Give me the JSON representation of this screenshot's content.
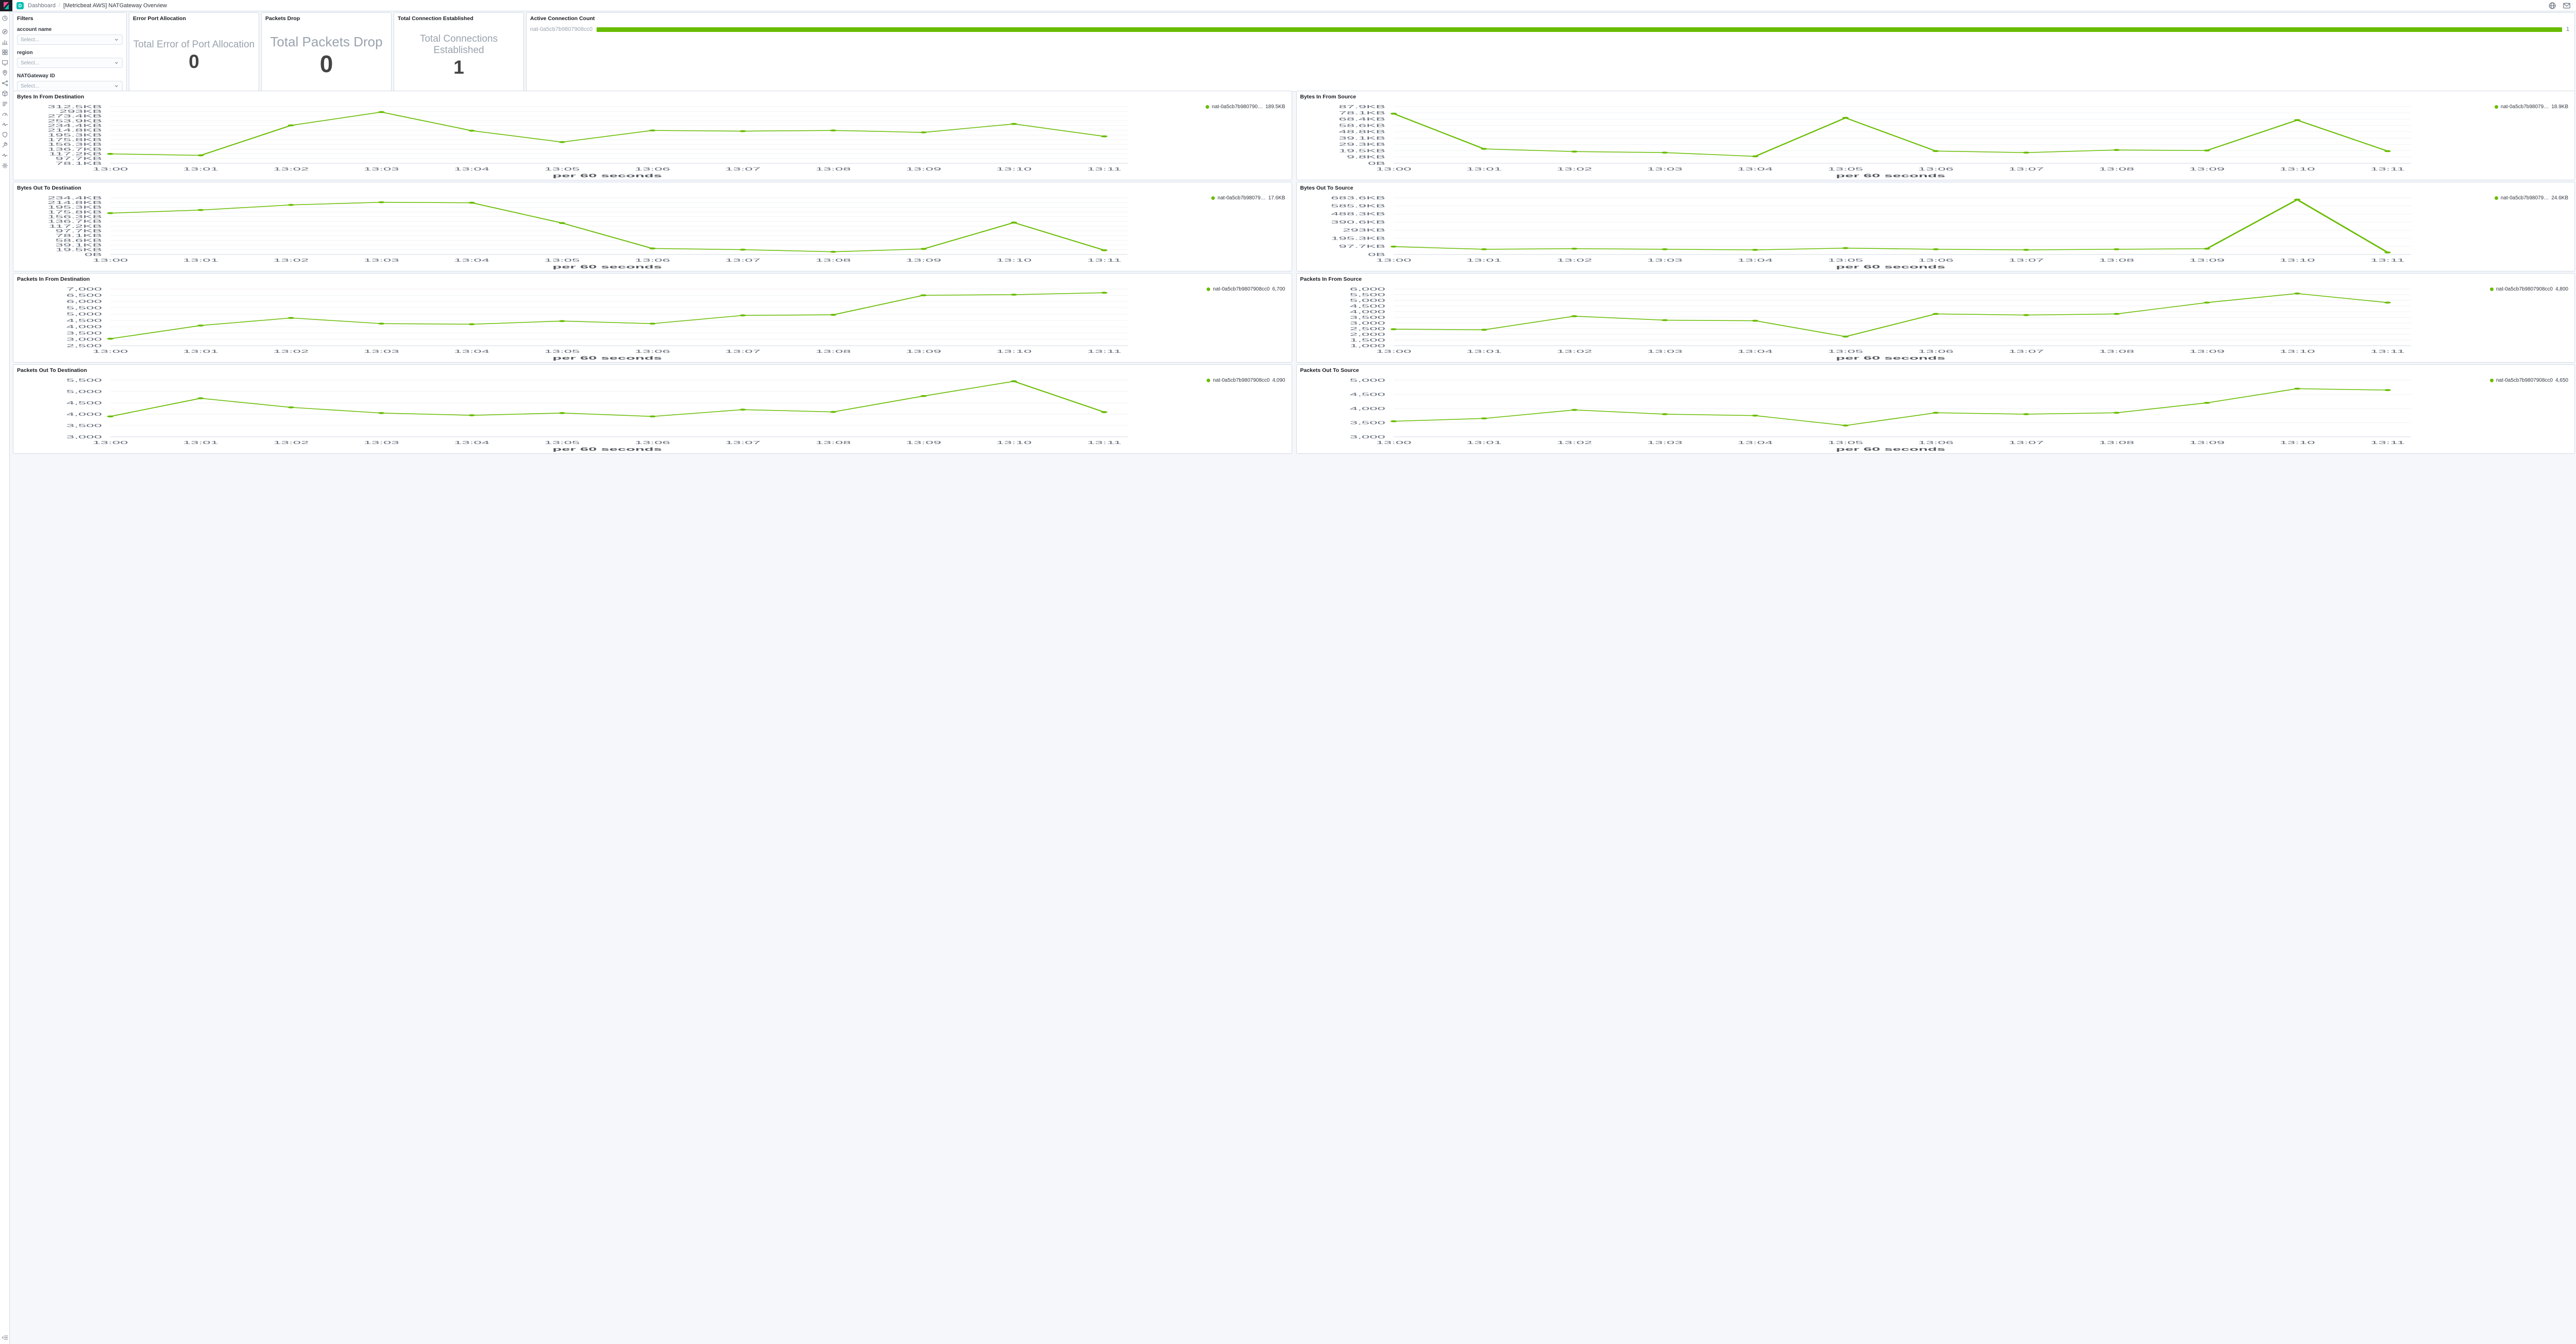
{
  "topbar": {
    "badge": "D",
    "breadcrumb_root": "Dashboard",
    "breadcrumb_separator": "/",
    "title": "[Metricbeat AWS] NATGateway Overview"
  },
  "sidebar": {
    "items": [
      {
        "name": "recently-viewed",
        "icon": "clock"
      },
      {
        "name": "discover",
        "icon": "compass"
      },
      {
        "name": "visualize",
        "icon": "bars"
      },
      {
        "name": "dashboard",
        "icon": "grid"
      },
      {
        "name": "canvas",
        "icon": "canvas"
      },
      {
        "name": "maps",
        "icon": "pin"
      },
      {
        "name": "machine-learning",
        "icon": "ml"
      },
      {
        "name": "infrastructure",
        "icon": "cube"
      },
      {
        "name": "logs",
        "icon": "logs"
      },
      {
        "name": "apm",
        "icon": "gauge"
      },
      {
        "name": "uptime",
        "icon": "heartbeat"
      },
      {
        "name": "siem",
        "icon": "shield"
      },
      {
        "name": "dev-tools",
        "icon": "wrench"
      },
      {
        "name": "stack-monitoring",
        "icon": "pulse"
      },
      {
        "name": "management",
        "icon": "gear"
      }
    ]
  },
  "filters": {
    "title": "Filters",
    "fields": [
      {
        "label": "account name",
        "placeholder": "Select..."
      },
      {
        "label": "region",
        "placeholder": "Select..."
      },
      {
        "label": "NATGateway ID",
        "placeholder": "Select..."
      }
    ]
  },
  "metric_panels": [
    {
      "panel_title": "Error Port Allocation",
      "label": "Total Error of Port Allocation",
      "value": "0"
    },
    {
      "panel_title": "Packets Drop",
      "label": "Total Packets Drop",
      "value": "0"
    },
    {
      "panel_title": "Total Connection Established",
      "label": "Total Connections Established",
      "value": "1"
    }
  ],
  "active_connection": {
    "panel_title": "Active Connection Count",
    "label": "nat-0a5cb7b9807908cc0",
    "value": "1",
    "bar_color": "#68BC00"
  },
  "chart_data": [
    {
      "type": "line",
      "title": "Bytes In From Destination",
      "legend_label": "nat-0a5cb7b980790…",
      "legend_value": "189.5KB",
      "color": "#68BC00",
      "x": [
        "13:00",
        "13:01",
        "13:02",
        "13:03",
        "13:04",
        "13:05",
        "13:06",
        "13:07",
        "13:08",
        "13:09",
        "13:10",
        "13:11"
      ],
      "values": [
        117,
        111,
        235,
        290,
        213,
        166,
        214,
        211,
        214,
        206,
        241,
        189.5
      ],
      "ylim": [
        78.1,
        312.5
      ],
      "ytick_values": [
        78.1,
        97.7,
        117.2,
        136.7,
        156.3,
        175.8,
        195.3,
        214.8,
        234.4,
        253.9,
        273.4,
        293,
        312.5
      ],
      "ytick_labels": [
        "78.1KB",
        "97.7KB",
        "117.2KB",
        "136.7KB",
        "156.3KB",
        "175.8KB",
        "195.3KB",
        "214.8KB",
        "234.4KB",
        "253.9KB",
        "273.4KB",
        "293KB",
        "312.5KB"
      ],
      "xlabel": "per 60 seconds"
    },
    {
      "type": "line",
      "title": "Bytes In From Source",
      "legend_label": "nat-0a5cb7b98079…",
      "legend_value": "18.9KB",
      "color": "#68BC00",
      "x": [
        "13:00",
        "13:01",
        "13:02",
        "13:03",
        "13:04",
        "13:05",
        "13:06",
        "13:07",
        "13:08",
        "13:09",
        "13:10",
        "13:11"
      ],
      "values": [
        77,
        22.4,
        18.2,
        16.6,
        10.8,
        70.5,
        19,
        16.6,
        20.7,
        19.9,
        67,
        18.9
      ],
      "ylim": [
        0,
        87.9
      ],
      "ytick_values": [
        0,
        9.8,
        19.5,
        29.3,
        39.1,
        48.8,
        58.6,
        68.4,
        78.1,
        87.9
      ],
      "ytick_labels": [
        "0B",
        "9.8KB",
        "19.5KB",
        "29.3KB",
        "39.1KB",
        "48.8KB",
        "58.6KB",
        "68.4KB",
        "78.1KB",
        "87.9KB"
      ],
      "xlabel": "per 60 seconds"
    },
    {
      "type": "line",
      "title": "Bytes Out To Destination",
      "legend_label": "nat-0a5cb7b98079…",
      "legend_value": "17.6KB",
      "color": "#68BC00",
      "x": [
        "13:00",
        "13:01",
        "13:02",
        "13:03",
        "13:04",
        "13:05",
        "13:06",
        "13:07",
        "13:08",
        "13:09",
        "13:10",
        "13:11"
      ],
      "values": [
        171,
        184,
        205,
        216,
        214,
        130,
        25,
        20,
        11,
        23,
        132,
        17.6
      ],
      "ylim": [
        0,
        234.4
      ],
      "ytick_values": [
        0,
        19.5,
        39.1,
        58.6,
        78.1,
        97.7,
        117.2,
        136.7,
        156.3,
        175.8,
        195.3,
        214.8,
        234.4
      ],
      "ytick_labels": [
        "0B",
        "19.5KB",
        "39.1KB",
        "58.6KB",
        "78.1KB",
        "97.7KB",
        "117.2KB",
        "136.7KB",
        "156.3KB",
        "175.8KB",
        "195.3KB",
        "214.8KB",
        "234.4KB"
      ],
      "xlabel": "per 60 seconds"
    },
    {
      "type": "line",
      "title": "Bytes Out To Source",
      "legend_label": "nat-0a5cb7b98079…",
      "legend_value": "24.6KB",
      "color": "#68BC00",
      "x": [
        "13:00",
        "13:01",
        "13:02",
        "13:03",
        "13:04",
        "13:05",
        "13:06",
        "13:07",
        "13:08",
        "13:09",
        "13:10",
        "13:11"
      ],
      "values": [
        95,
        63,
        70,
        63,
        56,
        77,
        63,
        56,
        63,
        70,
        662,
        24.6
      ],
      "ylim": [
        0,
        683.6
      ],
      "ytick_values": [
        0,
        97.7,
        195.3,
        293,
        390.6,
        488.3,
        585.9,
        683.6
      ],
      "ytick_labels": [
        "0B",
        "97.7KB",
        "195.3KB",
        "293KB",
        "390.6KB",
        "488.3KB",
        "585.9KB",
        "683.6KB"
      ],
      "xlabel": "per 60 seconds"
    },
    {
      "type": "line",
      "title": "Packets In From Destination",
      "legend_label": "nat-0a5cb7b9807908cc0",
      "legend_value": "6,700",
      "color": "#68BC00",
      "x": [
        "13:00",
        "13:01",
        "13:02",
        "13:03",
        "13:04",
        "13:05",
        "13:06",
        "13:07",
        "13:08",
        "13:09",
        "13:10",
        "13:11"
      ],
      "values": [
        3050,
        4100,
        4700,
        4250,
        4200,
        4450,
        4250,
        4900,
        4950,
        6500,
        6550,
        6700
      ],
      "ylim": [
        2500,
        7000
      ],
      "ytick_values": [
        2500,
        3000,
        3500,
        4000,
        4500,
        5000,
        5500,
        6000,
        6500,
        7000
      ],
      "ytick_labels": [
        "2,500",
        "3,000",
        "3,500",
        "4,000",
        "4,500",
        "5,000",
        "5,500",
        "6,000",
        "6,500",
        "7,000"
      ],
      "xlabel": "per 60 seconds"
    },
    {
      "type": "line",
      "title": "Packets In From Source",
      "legend_label": "nat-0a5cb7b9807908cc0",
      "legend_value": "4,800",
      "color": "#68BC00",
      "x": [
        "13:00",
        "13:01",
        "13:02",
        "13:03",
        "13:04",
        "13:05",
        "13:06",
        "13:07",
        "13:08",
        "13:09",
        "13:10",
        "13:11"
      ],
      "values": [
        2450,
        2400,
        3600,
        3250,
        3200,
        1800,
        3800,
        3700,
        3800,
        4800,
        5600,
        4800
      ],
      "ylim": [
        1000,
        6000
      ],
      "ytick_values": [
        1000,
        1500,
        2000,
        2500,
        3000,
        3500,
        4000,
        4500,
        5000,
        5500,
        6000
      ],
      "ytick_labels": [
        "1,000",
        "1,500",
        "2,000",
        "2,500",
        "3,000",
        "3,500",
        "4,000",
        "4,500",
        "5,000",
        "5,500",
        "6,000"
      ],
      "xlabel": "per 60 seconds"
    },
    {
      "type": "line",
      "title": "Packets Out To Destination",
      "legend_label": "nat-0a5cb7b9807908cc0",
      "legend_value": "4,090",
      "color": "#68BC00",
      "x": [
        "13:00",
        "13:01",
        "13:02",
        "13:03",
        "13:04",
        "13:05",
        "13:06",
        "13:07",
        "13:08",
        "13:09",
        "13:10",
        "13:11"
      ],
      "values": [
        3900,
        4700,
        4300,
        4050,
        3950,
        4050,
        3900,
        4200,
        4100,
        4800,
        5450,
        4090
      ],
      "ylim": [
        3000,
        5500
      ],
      "ytick_values": [
        3000,
        3500,
        4000,
        4500,
        5000,
        5500
      ],
      "ytick_labels": [
        "3,000",
        "3,500",
        "4,000",
        "4,500",
        "5,000",
        "5,500"
      ],
      "xlabel": "per 60 seconds"
    },
    {
      "type": "line",
      "title": "Packets Out To Source",
      "legend_label": "nat-0a5cb7b9807908cc0",
      "legend_value": "4,650",
      "color": "#68BC00",
      "x": [
        "13:00",
        "13:01",
        "13:02",
        "13:03",
        "13:04",
        "13:05",
        "13:06",
        "13:07",
        "13:08",
        "13:09",
        "13:10",
        "13:11"
      ],
      "values": [
        3550,
        3650,
        3950,
        3800,
        3750,
        3400,
        3850,
        3800,
        3850,
        4200,
        4700,
        4650
      ],
      "ylim": [
        3000,
        5000
      ],
      "ytick_values": [
        3000,
        3500,
        4000,
        4500,
        5000
      ],
      "ytick_labels": [
        "3,000",
        "3,500",
        "4,000",
        "4,500",
        "5,000"
      ],
      "xlabel": "per 60 seconds"
    }
  ]
}
